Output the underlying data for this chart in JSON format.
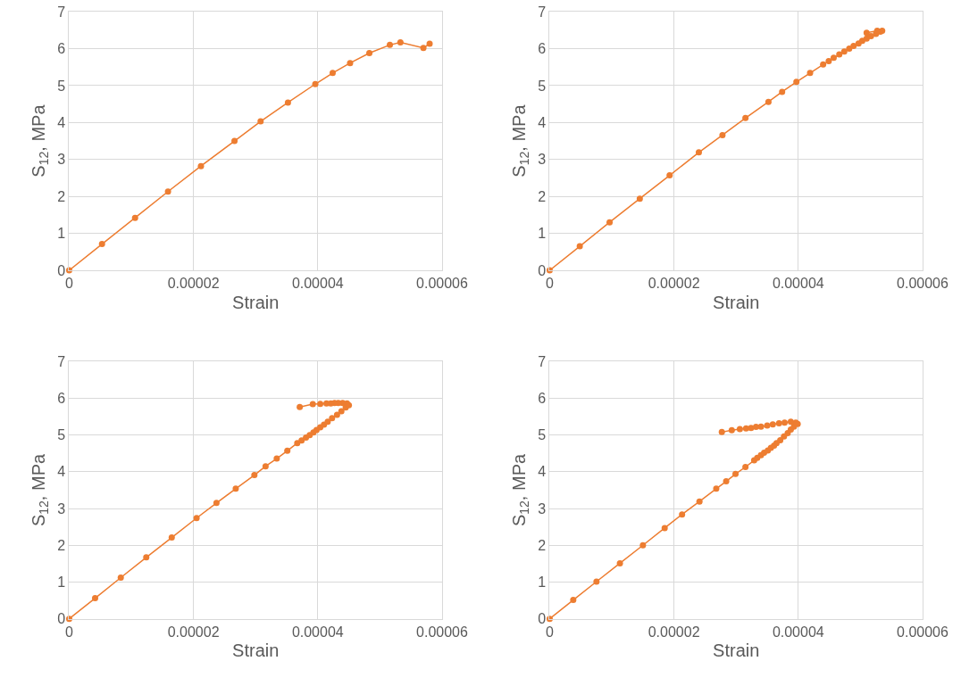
{
  "chart_data": [
    {
      "type": "line",
      "xlabel": "Strain",
      "ylabel": "S$_{12}$, MPa",
      "xlim": [
        0,
        6e-05
      ],
      "ylim": [
        0,
        7
      ],
      "xticks": [
        0,
        {
          "value": 2e-05,
          "label": "0.00002"
        },
        {
          "value": 4e-05,
          "label": "0.00004"
        },
        {
          "value": 6e-05,
          "label": "0.00006"
        }
      ],
      "yticks": [
        0,
        1,
        2,
        3,
        4,
        5,
        6,
        7
      ],
      "grid": true,
      "marker": "circle",
      "line_style": "solid",
      "series": [
        {
          "color": "#ed7d31",
          "x": [
            0,
            5.28e-06,
            1.06e-05,
            1.59e-05,
            2.12e-05,
            2.66e-05,
            3.08e-05,
            3.52e-05,
            3.96e-05,
            4.24e-05,
            4.52e-05,
            4.83e-05,
            5.16e-05,
            5.33e-05,
            5.7e-05,
            5.8e-05
          ],
          "values": [
            0,
            0.71,
            1.42,
            2.13,
            2.82,
            3.5,
            4.03,
            4.54,
            5.04,
            5.34,
            5.61,
            5.88,
            6.1,
            6.17,
            6.02,
            6.13
          ]
        }
      ]
    },
    {
      "type": "line",
      "xlabel": "Strain",
      "ylabel": "S$_{12}$, MPa",
      "xlim": [
        0,
        6e-05
      ],
      "ylim": [
        0,
        7
      ],
      "xticks": [
        0,
        {
          "value": 2e-05,
          "label": "0.00002"
        },
        {
          "value": 4e-05,
          "label": "0.00004"
        },
        {
          "value": 6e-05,
          "label": "0.00006"
        }
      ],
      "yticks": [
        0,
        1,
        2,
        3,
        4,
        5,
        6,
        7
      ],
      "grid": true,
      "marker": "circle",
      "line_style": "solid",
      "series": [
        {
          "color": "#ed7d31",
          "x": [
            0,
            4.84e-06,
            9.64e-06,
            1.45e-05,
            1.93e-05,
            2.4e-05,
            2.78e-05,
            3.15e-05,
            3.52e-05,
            3.74e-05,
            3.97e-05,
            4.19e-05,
            4.4e-05,
            4.49e-05,
            4.57e-05,
            4.66e-05,
            4.74e-05,
            4.82e-05,
            4.89e-05,
            4.97e-05,
            5.03e-05,
            5.1e-05,
            5.17e-05,
            5.25e-05,
            5.32e-05,
            5.35e-05,
            5.27e-05,
            5.1e-05
          ],
          "values": [
            0,
            0.65,
            1.3,
            1.94,
            2.57,
            3.19,
            3.66,
            4.12,
            4.56,
            4.83,
            5.1,
            5.34,
            5.57,
            5.66,
            5.75,
            5.84,
            5.92,
            6.0,
            6.07,
            6.14,
            6.21,
            6.27,
            6.34,
            6.4,
            6.46,
            6.48,
            6.48,
            6.43
          ]
        }
      ]
    },
    {
      "type": "line",
      "xlabel": "Strain",
      "ylabel": "S$_{12}$, MPa",
      "xlim": [
        0,
        6e-05
      ],
      "ylim": [
        0,
        7
      ],
      "xticks": [
        0,
        {
          "value": 2e-05,
          "label": "0.00002"
        },
        {
          "value": 4e-05,
          "label": "0.00004"
        },
        {
          "value": 6e-05,
          "label": "0.00006"
        }
      ],
      "yticks": [
        0,
        1,
        2,
        3,
        4,
        5,
        6,
        7
      ],
      "grid": true,
      "marker": "circle",
      "line_style": "solid",
      "series": [
        {
          "color": "#ed7d31",
          "x": [
            0,
            4.17e-06,
            8.3e-06,
            1.24e-05,
            1.65e-05,
            2.05e-05,
            2.37e-05,
            2.68e-05,
            2.98e-05,
            3.16e-05,
            3.34e-05,
            3.51e-05,
            3.67e-05,
            3.74e-05,
            3.81e-05,
            3.87e-05,
            3.93e-05,
            3.98e-05,
            4.04e-05,
            4.1e-05,
            4.16e-05,
            4.23e-05,
            4.31e-05,
            4.38e-05,
            4.45e-05,
            4.5e-05,
            4.47e-05,
            4.4e-05,
            4.33e-05,
            4.27e-05,
            4.21e-05,
            4.14e-05,
            4.04e-05,
            3.92e-05,
            3.71e-05
          ],
          "values": [
            0,
            0.56,
            1.12,
            1.67,
            2.21,
            2.74,
            3.15,
            3.54,
            3.91,
            4.15,
            4.36,
            4.57,
            4.78,
            4.85,
            4.93,
            5.0,
            5.07,
            5.14,
            5.21,
            5.28,
            5.36,
            5.46,
            5.55,
            5.65,
            5.75,
            5.81,
            5.86,
            5.87,
            5.87,
            5.87,
            5.86,
            5.86,
            5.85,
            5.84,
            5.76
          ]
        }
      ]
    },
    {
      "type": "line",
      "xlabel": "Strain",
      "ylabel": "S$_{12}$, MPa",
      "xlim": [
        0,
        6e-05
      ],
      "ylim": [
        0,
        7
      ],
      "xticks": [
        0,
        {
          "value": 2e-05,
          "label": "0.00002"
        },
        {
          "value": 4e-05,
          "label": "0.00004"
        },
        {
          "value": 6e-05,
          "label": "0.00006"
        }
      ],
      "yticks": [
        0,
        1,
        2,
        3,
        4,
        5,
        6,
        7
      ],
      "grid": true,
      "marker": "circle",
      "line_style": "solid",
      "series": [
        {
          "color": "#ed7d31",
          "x": [
            0,
            3.79e-06,
            7.53e-06,
            1.13e-05,
            1.5e-05,
            1.85e-05,
            2.13e-05,
            2.41e-05,
            2.68e-05,
            2.84e-05,
            2.99e-05,
            3.15e-05,
            3.29e-05,
            3.34e-05,
            3.4e-05,
            3.45e-05,
            3.51e-05,
            3.56e-05,
            3.61e-05,
            3.65e-05,
            3.71e-05,
            3.77e-05,
            3.83e-05,
            3.88e-05,
            3.93e-05,
            3.99e-05,
            3.96e-05,
            3.88e-05,
            3.78e-05,
            3.69e-05,
            3.59e-05,
            3.5e-05,
            3.4e-05,
            3.32e-05,
            3.24e-05,
            3.16e-05,
            3.06e-05,
            2.93e-05,
            2.77e-05
          ],
          "values": [
            0,
            0.51,
            1.01,
            1.51,
            2.0,
            2.47,
            2.84,
            3.19,
            3.54,
            3.74,
            3.94,
            4.13,
            4.31,
            4.38,
            4.45,
            4.52,
            4.58,
            4.65,
            4.71,
            4.78,
            4.86,
            4.96,
            5.05,
            5.15,
            5.23,
            5.3,
            5.34,
            5.36,
            5.34,
            5.32,
            5.29,
            5.26,
            5.23,
            5.22,
            5.19,
            5.18,
            5.16,
            5.13,
            5.08
          ]
        }
      ]
    }
  ]
}
